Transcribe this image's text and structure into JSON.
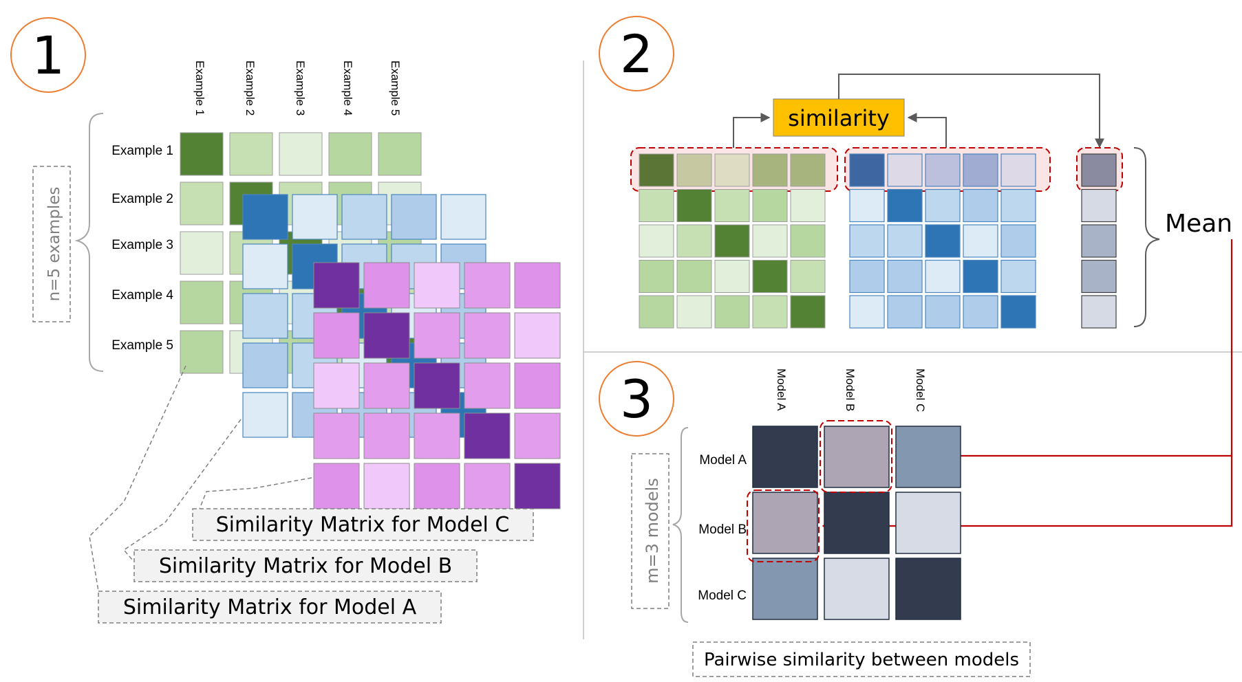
{
  "steps": [
    "1",
    "2",
    "3"
  ],
  "panel1": {
    "column_labels": [
      "Example 1",
      "Example 2",
      "Example 3",
      "Example 4",
      "Example 5"
    ],
    "row_labels": [
      "Example 1",
      "Example 2",
      "Example 3",
      "Example 4",
      "Example 5"
    ],
    "count_label": "n=5 examples",
    "captions": {
      "model_c": "Similarity Matrix for Model C",
      "model_b": "Similarity Matrix for Model B",
      "model_a": "Similarity Matrix for Model A"
    },
    "green_levels": [
      [
        4,
        1,
        0,
        2,
        2
      ],
      [
        1,
        4,
        1,
        2,
        0
      ],
      [
        0,
        1,
        4,
        0,
        2
      ],
      [
        2,
        2,
        0,
        4,
        1
      ],
      [
        2,
        0,
        2,
        1,
        4
      ]
    ],
    "blue_levels": [
      [
        4,
        0,
        1,
        2,
        0
      ],
      [
        0,
        4,
        1,
        1,
        2
      ],
      [
        1,
        1,
        4,
        0,
        2
      ],
      [
        2,
        1,
        0,
        4,
        2
      ],
      [
        0,
        2,
        2,
        2,
        4
      ]
    ],
    "purple_levels": [
      [
        4,
        2,
        0,
        1,
        2
      ],
      [
        2,
        4,
        1,
        1,
        0
      ],
      [
        0,
        1,
        4,
        1,
        2
      ],
      [
        1,
        1,
        1,
        4,
        1
      ],
      [
        2,
        0,
        2,
        1,
        4
      ]
    ]
  },
  "panel2": {
    "similarity_label": "similarity",
    "mean_label": "Mean",
    "green_levels": [
      [
        4,
        1,
        0,
        2,
        1
      ],
      [
        1,
        4,
        1,
        2,
        0
      ],
      [
        0,
        1,
        4,
        0,
        2
      ],
      [
        2,
        2,
        0,
        4,
        1
      ],
      [
        2,
        0,
        2,
        1,
        4
      ]
    ],
    "blue_levels": [
      [
        4,
        0,
        1,
        2,
        0
      ],
      [
        0,
        4,
        1,
        2,
        1
      ],
      [
        1,
        1,
        4,
        0,
        2
      ],
      [
        2,
        2,
        0,
        4,
        1
      ],
      [
        0,
        2,
        2,
        2,
        4
      ]
    ],
    "highlight_green": [
      "#5a7536",
      "#c6c8a2",
      "#dfdcc4",
      "#a8b47d",
      "#a8b47d"
    ],
    "highlight_blue": [
      "#3e67a2",
      "#ddd9e6",
      "#bdc0dc",
      "#a0acd2",
      "#ddd9e6"
    ],
    "mean_column": [
      "#8a8aa0",
      "#d6dae4",
      "#a9b3c7",
      "#a9b3c7",
      "#d6dae4"
    ]
  },
  "panel3": {
    "column_labels": [
      "Model A",
      "Model B",
      "Model C"
    ],
    "row_labels": [
      "Model A",
      "Model B",
      "Model C"
    ],
    "count_label": "m=3 models",
    "caption": "Pairwise similarity between models",
    "matrix_colors": [
      [
        "#323c4e",
        "#aea5b4",
        "#8497b0"
      ],
      [
        "#aea5b4",
        "#323c4e",
        "#d6dbe5"
      ],
      [
        "#8497b0",
        "#d6dbe5",
        "#323c4e"
      ]
    ]
  },
  "colors": {
    "step_circle": "#ed7d31",
    "highlight_dash": "#c00000",
    "arrow_red": "#c00000",
    "similarity_box": "#ffc000",
    "green_scale": [
      "#e2efda",
      "#c6e0b4",
      "#b7d7a0",
      "#a9d18e",
      "#548235"
    ],
    "blue_scale": [
      "#ddebf7",
      "#bdd7ee",
      "#afcdea",
      "#9dc3e6",
      "#2e75b6"
    ],
    "purple_scale": [
      "#f1c8fa",
      "#e29eec",
      "#de92ea",
      "#cc6ef7",
      "#7030a0"
    ]
  }
}
